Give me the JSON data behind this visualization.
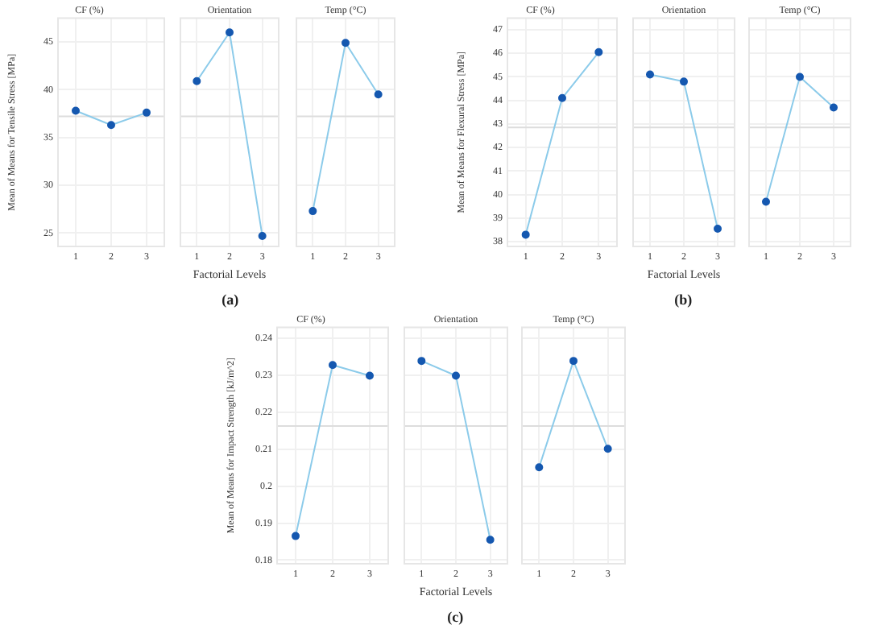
{
  "chart_data": [
    {
      "type": "line",
      "title": "CF (%)",
      "ylabel": "Mean of Means for Tensile Stress [MPa]",
      "categories": [
        "1",
        "2",
        "3"
      ],
      "series": [
        {
          "color": "#8ccbea",
          "values": [
            37.8,
            36.3,
            37.6
          ]
        }
      ],
      "marker": "circle",
      "ylim": [
        23.6,
        47.5
      ],
      "yticks": [
        25,
        30,
        35,
        40,
        45
      ],
      "grid": true,
      "ref_lines": [
        {
          "axis": "y",
          "value": 37.2,
          "color": "#dddddd"
        }
      ]
    },
    {
      "type": "line",
      "title": "Orientation",
      "xlabel": "Factorial Levels",
      "categories": [
        "1",
        "2",
        "3"
      ],
      "series": [
        {
          "color": "#8ccbea",
          "values": [
            40.9,
            46.0,
            24.7
          ]
        }
      ],
      "marker": "circle",
      "ylim": [
        23.6,
        47.5
      ],
      "yticks": [
        25,
        30,
        35,
        40,
        45
      ],
      "grid": true,
      "tick_labels": "x",
      "ref_lines": [
        {
          "axis": "y",
          "value": 37.2,
          "color": "#dddddd"
        }
      ],
      "annotations": [
        "(a)"
      ]
    },
    {
      "type": "line",
      "title": "Temp (°C)",
      "categories": [
        "1",
        "2",
        "3"
      ],
      "series": [
        {
          "color": "#8ccbea",
          "values": [
            27.3,
            44.9,
            39.5
          ]
        }
      ],
      "marker": "circle",
      "ylim": [
        23.6,
        47.5
      ],
      "yticks": [
        25,
        30,
        35,
        40,
        45
      ],
      "grid": true,
      "tick_labels": "x",
      "ref_lines": [
        {
          "axis": "y",
          "value": 37.2,
          "color": "#dddddd"
        }
      ]
    },
    {
      "type": "line",
      "title": "CF (%)",
      "ylabel": "Mean of Means for Flexural Stress [MPa]",
      "categories": [
        "1",
        "2",
        "3"
      ],
      "series": [
        {
          "color": "#8ccbea",
          "values": [
            38.3,
            44.1,
            46.05
          ]
        }
      ],
      "marker": "circle",
      "ylim": [
        37.8,
        47.5
      ],
      "yticks": [
        38,
        39,
        40,
        41,
        42,
        43,
        44,
        45,
        46,
        47
      ],
      "grid": true,
      "ref_lines": [
        {
          "axis": "y",
          "value": 42.85,
          "color": "#dddddd"
        }
      ]
    },
    {
      "type": "line",
      "title": "Orientation",
      "xlabel": "Factorial Levels",
      "categories": [
        "1",
        "2",
        "3"
      ],
      "series": [
        {
          "color": "#8ccbea",
          "values": [
            45.1,
            44.8,
            38.55
          ]
        }
      ],
      "marker": "circle",
      "ylim": [
        37.8,
        47.5
      ],
      "yticks": [
        38,
        39,
        40,
        41,
        42,
        43,
        44,
        45,
        46,
        47
      ],
      "grid": true,
      "tick_labels": "x",
      "ref_lines": [
        {
          "axis": "y",
          "value": 42.85,
          "color": "#dddddd"
        }
      ],
      "annotations": [
        "(b)"
      ]
    },
    {
      "type": "line",
      "title": "Temp (°C)",
      "categories": [
        "1",
        "2",
        "3"
      ],
      "series": [
        {
          "color": "#8ccbea",
          "values": [
            39.7,
            45.0,
            43.7
          ]
        }
      ],
      "marker": "circle",
      "ylim": [
        37.8,
        47.5
      ],
      "yticks": [
        38,
        39,
        40,
        41,
        42,
        43,
        44,
        45,
        46,
        47
      ],
      "grid": true,
      "tick_labels": "x",
      "ref_lines": [
        {
          "axis": "y",
          "value": 42.85,
          "color": "#dddddd"
        }
      ]
    },
    {
      "type": "line",
      "title": "CF (%)",
      "ylabel": "Mean of Means for Impact Strength [kJ/m^2]",
      "categories": [
        "1",
        "2",
        "3"
      ],
      "series": [
        {
          "color": "#8ccbea",
          "values": [
            0.1865,
            0.2328,
            0.2299
          ]
        }
      ],
      "marker": "circle",
      "ylim": [
        0.179,
        0.243
      ],
      "yticks": [
        0.18,
        0.19,
        0.2,
        0.21,
        0.22,
        0.23,
        0.24
      ],
      "grid": true,
      "ref_lines": [
        {
          "axis": "y",
          "value": 0.2163,
          "color": "#dddddd"
        }
      ]
    },
    {
      "type": "line",
      "title": "Orientation",
      "xlabel": "Factorial Levels",
      "categories": [
        "1",
        "2",
        "3"
      ],
      "series": [
        {
          "color": "#8ccbea",
          "values": [
            0.2339,
            0.2299,
            0.1855
          ]
        }
      ],
      "marker": "circle",
      "ylim": [
        0.179,
        0.243
      ],
      "yticks": [
        0.18,
        0.19,
        0.2,
        0.21,
        0.22,
        0.23,
        0.24
      ],
      "grid": true,
      "tick_labels": "x",
      "ref_lines": [
        {
          "axis": "y",
          "value": 0.2163,
          "color": "#dddddd"
        }
      ],
      "annotations": [
        "(c)"
      ]
    },
    {
      "type": "line",
      "title": "Temp (°C)",
      "categories": [
        "1",
        "2",
        "3"
      ],
      "series": [
        {
          "color": "#8ccbea",
          "values": [
            0.2051,
            0.2339,
            0.2101
          ]
        }
      ],
      "marker": "circle",
      "ylim": [
        0.179,
        0.243
      ],
      "yticks": [
        0.18,
        0.19,
        0.2,
        0.21,
        0.22,
        0.23,
        0.24
      ],
      "grid": true,
      "tick_labels": "x",
      "ref_lines": [
        {
          "axis": "y",
          "value": 0.2163,
          "color": "#dddddd"
        }
      ]
    }
  ]
}
